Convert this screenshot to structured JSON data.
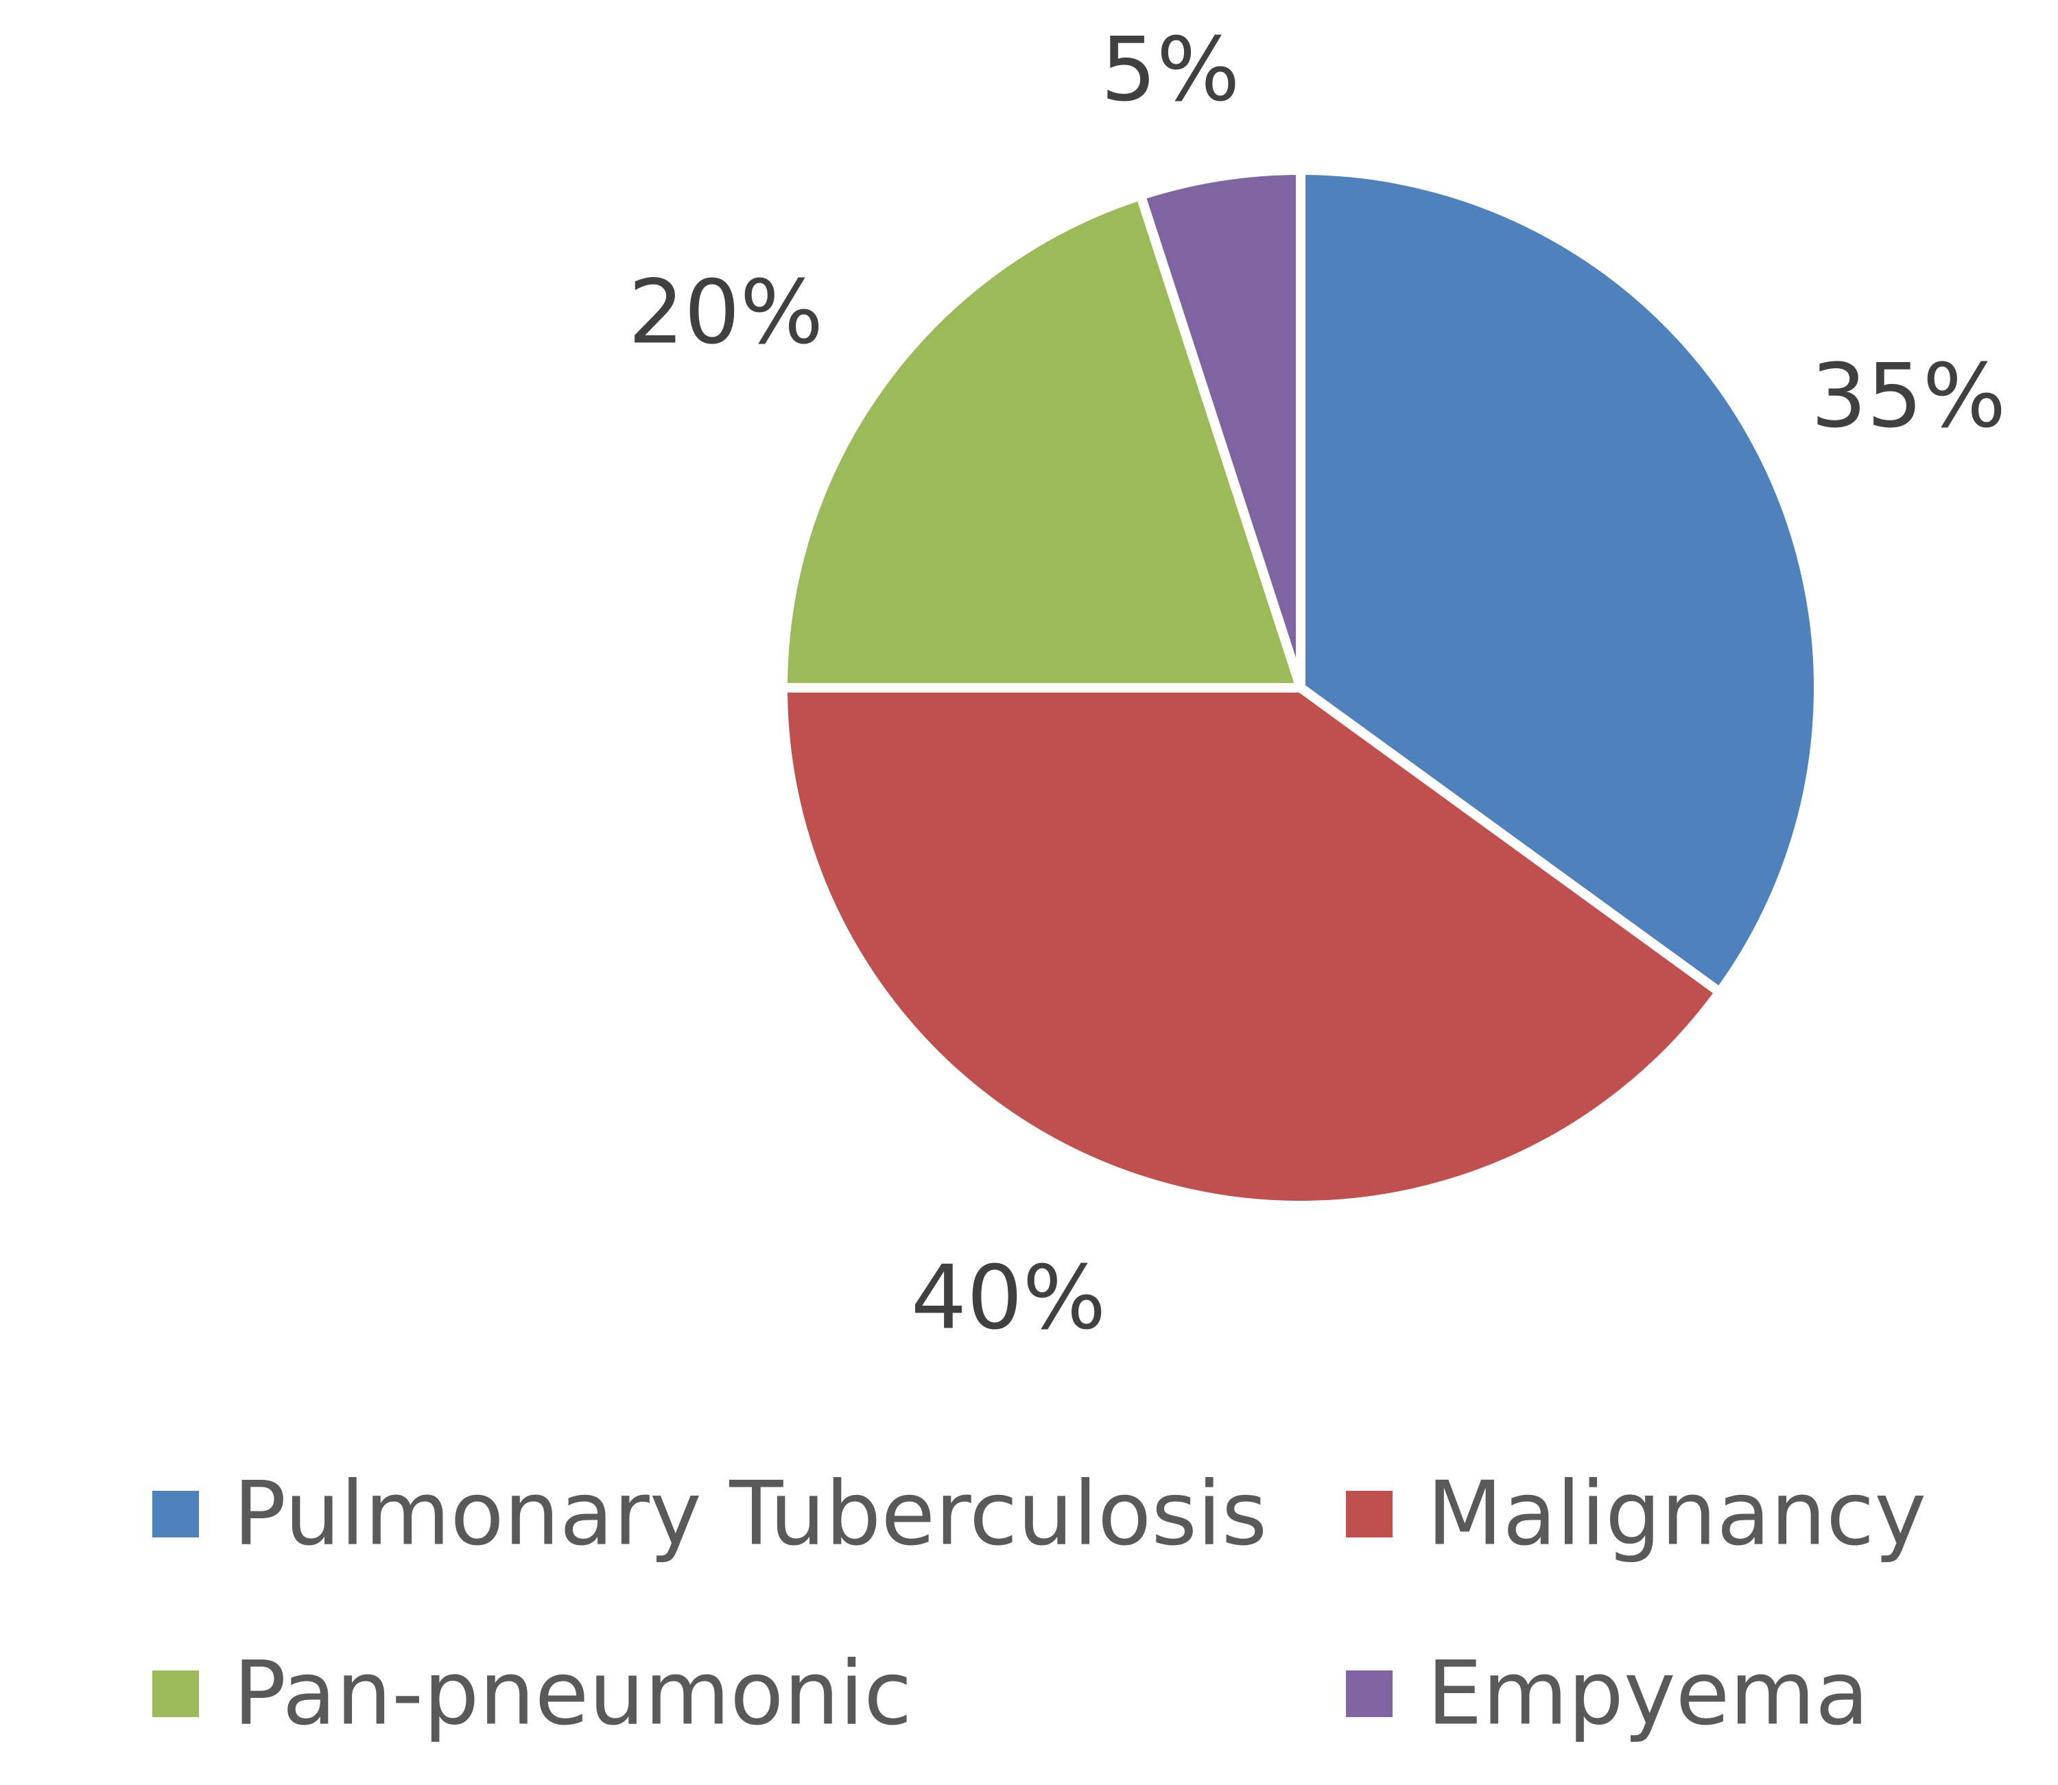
{
  "chart_data": {
    "type": "pie",
    "start_angle": "12 o'clock",
    "direction": "clockwise",
    "legend_position": "bottom",
    "slices": [
      {
        "label": "Pulmonary Tuberculosis",
        "value": 35,
        "value_label": "35%",
        "color": "#4F81BD"
      },
      {
        "label": "Malignancy",
        "value": 40,
        "value_label": "40%",
        "color": "#C0504D"
      },
      {
        "label": "Pan-pneumonic",
        "value": 20,
        "value_label": "20%",
        "color": "#9BBB59"
      },
      {
        "label": "Empyema",
        "value": 5,
        "value_label": "5%",
        "color": "#8064A2"
      }
    ]
  }
}
